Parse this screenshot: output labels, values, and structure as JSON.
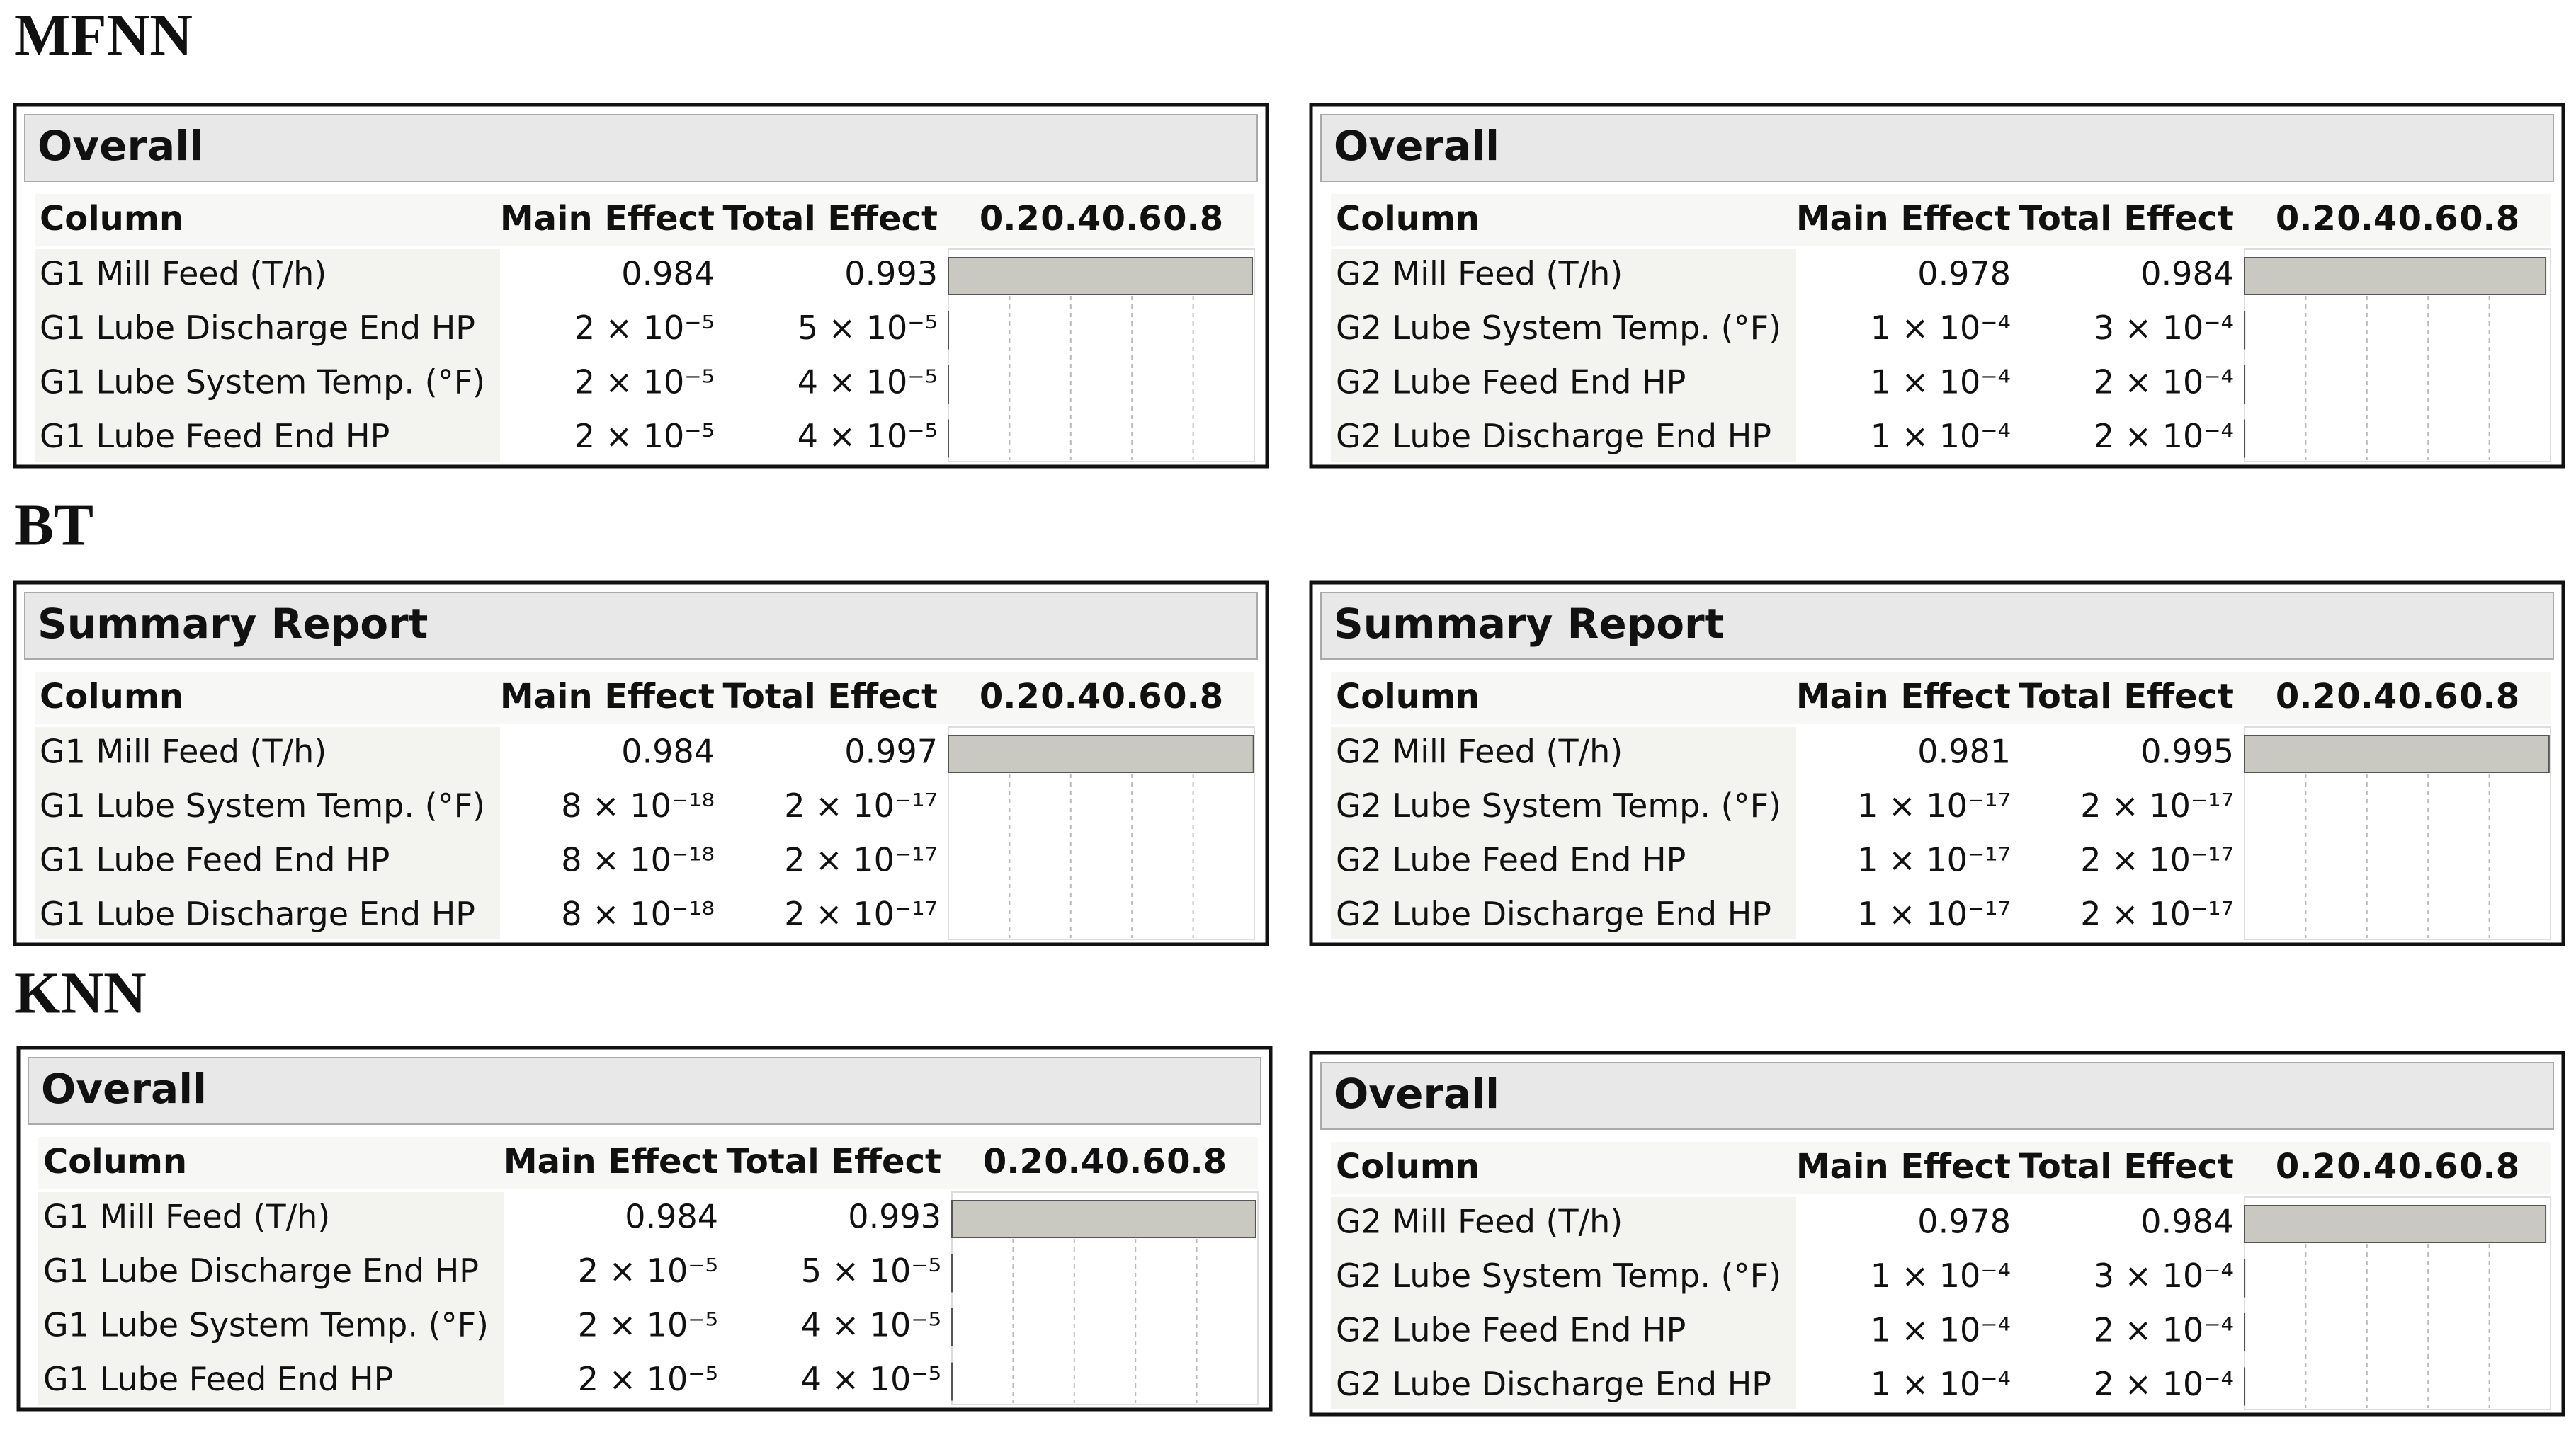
{
  "scale": {
    "xlim": [
      0,
      1
    ],
    "xticks": [
      0.2,
      0.4,
      0.6,
      0.8
    ]
  },
  "sections": [
    {
      "title": "MFNN",
      "panels": [
        {
          "header": "Overall",
          "columns": [
            "Column",
            "Main Effect",
            "Total Effect"
          ],
          "rows": [
            {
              "name": "G1 Mill Feed (T/h)",
              "main": 0.984,
              "total": 0.993
            },
            {
              "name": "G1 Lube Discharge End HP",
              "main": {
                "value": 2e-05,
                "label": "2 × 10⁻⁵"
              },
              "total": {
                "value": 5e-05,
                "label": "5 × 10⁻⁵"
              }
            },
            {
              "name": "G1 Lube System Temp. (°F)",
              "main": {
                "value": 2e-05,
                "label": "2 × 10⁻⁵"
              },
              "total": {
                "value": 4e-05,
                "label": "4 × 10⁻⁵"
              }
            },
            {
              "name": "G1 Lube Feed End HP",
              "main": {
                "value": 2e-05,
                "label": "2 × 10⁻⁵"
              },
              "total": {
                "value": 4e-05,
                "label": "4 × 10⁻⁵"
              }
            }
          ]
        },
        {
          "header": "Overall",
          "columns": [
            "Column",
            "Main Effect",
            "Total Effect"
          ],
          "rows": [
            {
              "name": "G2 Mill Feed (T/h)",
              "main": 0.978,
              "total": 0.984
            },
            {
              "name": "G2 Lube System Temp. (°F)",
              "main": {
                "value": 0.0001,
                "label": "1 × 10⁻⁴"
              },
              "total": {
                "value": 0.0003,
                "label": "3 × 10⁻⁴"
              }
            },
            {
              "name": "G2 Lube Feed End HP",
              "main": {
                "value": 0.0001,
                "label": "1 × 10⁻⁴"
              },
              "total": {
                "value": 0.0002,
                "label": "2 × 10⁻⁴"
              }
            },
            {
              "name": "G2 Lube Discharge End HP",
              "main": {
                "value": 0.0001,
                "label": "1 × 10⁻⁴"
              },
              "total": {
                "value": 0.0002,
                "label": "2 × 10⁻⁴"
              }
            }
          ]
        }
      ]
    },
    {
      "title": "BT",
      "panels": [
        {
          "header": "Summary Report",
          "columns": [
            "Column",
            "Main Effect",
            "Total Effect"
          ],
          "rows": [
            {
              "name": "G1 Mill Feed (T/h)",
              "main": 0.984,
              "total": 0.997
            },
            {
              "name": "G1 Lube System Temp. (°F)",
              "main": {
                "value": 8e-18,
                "label": "8 × 10⁻¹⁸"
              },
              "total": {
                "value": 2e-17,
                "label": "2 × 10⁻¹⁷"
              }
            },
            {
              "name": "G1 Lube Feed End HP",
              "main": {
                "value": 8e-18,
                "label": "8 × 10⁻¹⁸"
              },
              "total": {
                "value": 2e-17,
                "label": "2 × 10⁻¹⁷"
              }
            },
            {
              "name": "G1 Lube Discharge End HP",
              "main": {
                "value": 8e-18,
                "label": "8 × 10⁻¹⁸"
              },
              "total": {
                "value": 2e-17,
                "label": "2 × 10⁻¹⁷"
              }
            }
          ]
        },
        {
          "header": "Summary Report",
          "columns": [
            "Column",
            "Main Effect",
            "Total Effect"
          ],
          "rows": [
            {
              "name": "G2 Mill Feed (T/h)",
              "main": 0.981,
              "total": 0.995
            },
            {
              "name": "G2 Lube System Temp. (°F)",
              "main": {
                "value": 1e-17,
                "label": "1 × 10⁻¹⁷"
              },
              "total": {
                "value": 2e-17,
                "label": "2 × 10⁻¹⁷"
              }
            },
            {
              "name": "G2 Lube Feed End HP",
              "main": {
                "value": 1e-17,
                "label": "1 × 10⁻¹⁷"
              },
              "total": {
                "value": 2e-17,
                "label": "2 × 10⁻¹⁷"
              }
            },
            {
              "name": "G2 Lube Discharge End HP",
              "main": {
                "value": 1e-17,
                "label": "1 × 10⁻¹⁷"
              },
              "total": {
                "value": 2e-17,
                "label": "2 × 10⁻¹⁷"
              }
            }
          ]
        }
      ]
    },
    {
      "title": "KNN",
      "panels": [
        {
          "header": "Overall",
          "columns": [
            "Column",
            "Main Effect",
            "Total Effect"
          ],
          "rows": [
            {
              "name": "G1 Mill Feed (T/h)",
              "main": 0.984,
              "total": 0.993
            },
            {
              "name": "G1 Lube Discharge End HP",
              "main": {
                "value": 2e-05,
                "label": "2 × 10⁻⁵"
              },
              "total": {
                "value": 5e-05,
                "label": "5 × 10⁻⁵"
              }
            },
            {
              "name": "G1 Lube System Temp. (°F)",
              "main": {
                "value": 2e-05,
                "label": "2 × 10⁻⁵"
              },
              "total": {
                "value": 4e-05,
                "label": "4 × 10⁻⁵"
              }
            },
            {
              "name": "G1 Lube Feed End HP",
              "main": {
                "value": 2e-05,
                "label": "2 × 10⁻⁵"
              },
              "total": {
                "value": 4e-05,
                "label": "4 × 10⁻⁵"
              }
            }
          ]
        },
        {
          "header": "Overall",
          "columns": [
            "Column",
            "Main Effect",
            "Total Effect"
          ],
          "rows": [
            {
              "name": "G2 Mill Feed (T/h)",
              "main": 0.978,
              "total": 0.984
            },
            {
              "name": "G2 Lube System Temp. (°F)",
              "main": {
                "value": 0.0001,
                "label": "1 × 10⁻⁴"
              },
              "total": {
                "value": 0.0003,
                "label": "3 × 10⁻⁴"
              }
            },
            {
              "name": "G2 Lube Feed End HP",
              "main": {
                "value": 0.0001,
                "label": "1 × 10⁻⁴"
              },
              "total": {
                "value": 0.0002,
                "label": "2 × 10⁻⁴"
              }
            },
            {
              "name": "G2 Lube Discharge End HP",
              "main": {
                "value": 0.0001,
                "label": "1 × 10⁻⁴"
              },
              "total": {
                "value": 0.0002,
                "label": "2 × 10⁻⁴"
              }
            }
          ]
        }
      ]
    }
  ]
}
